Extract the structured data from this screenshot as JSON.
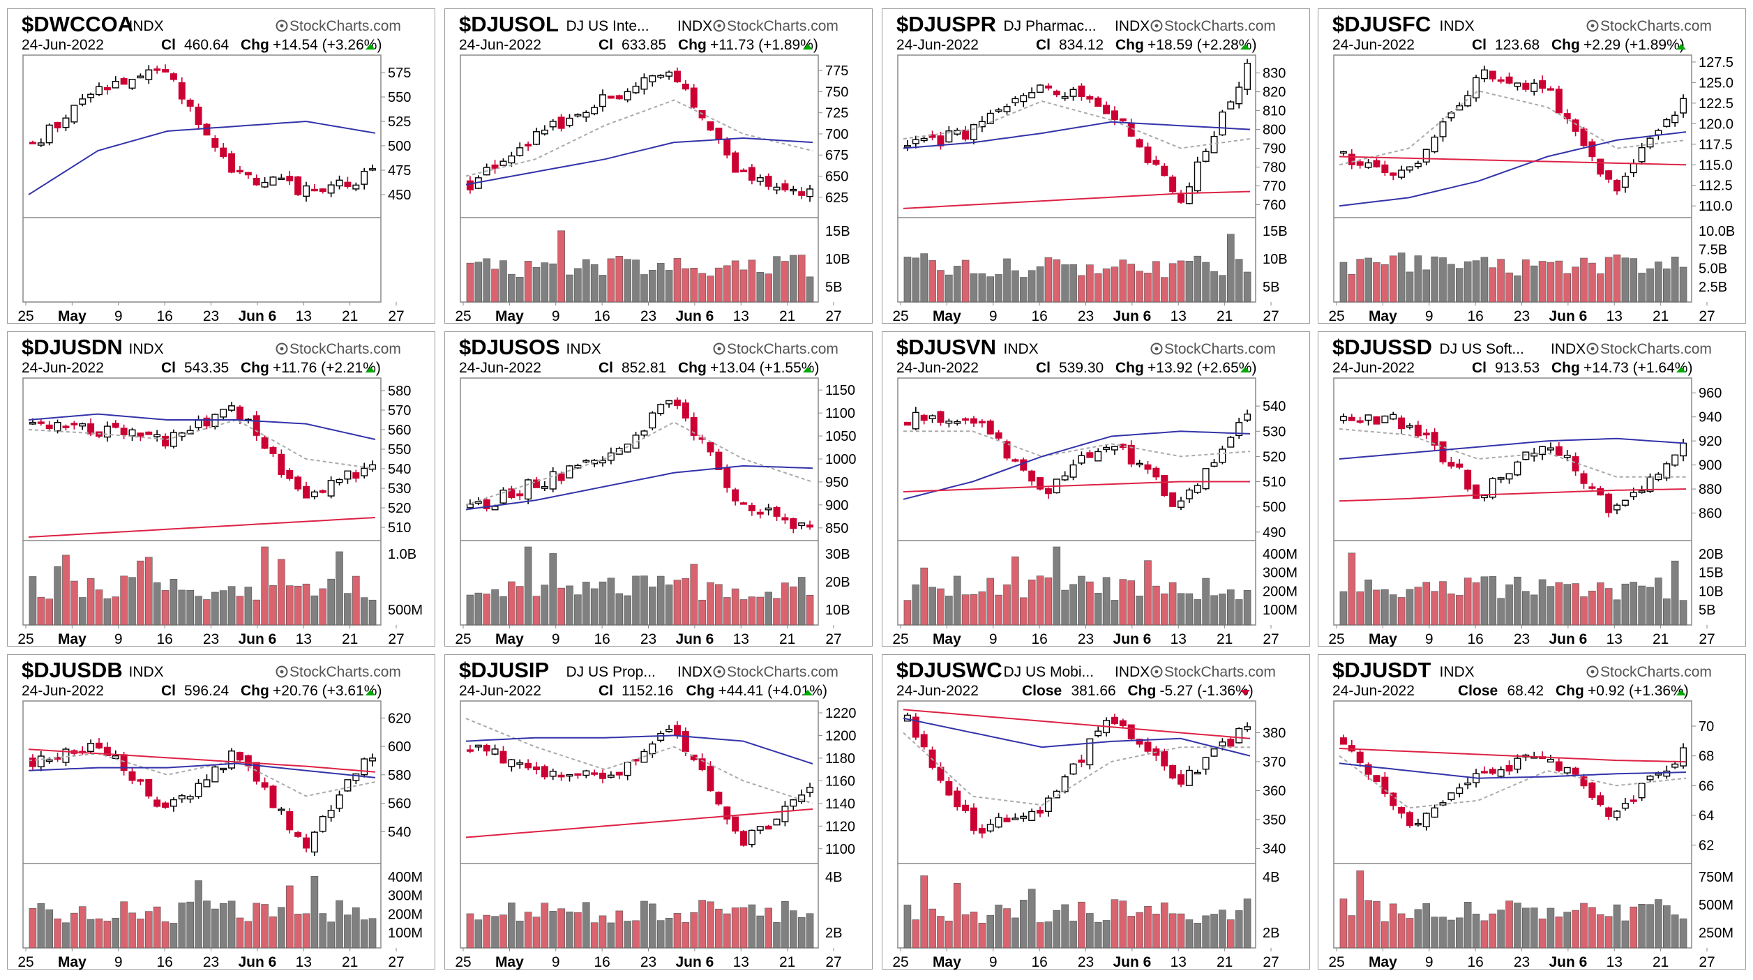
{
  "colors": {
    "up": "#ffffff",
    "down": "#cc0033",
    "upVol": "#808080",
    "downVol": "#d9636f",
    "ma50": "#3333aa",
    "ma200": "#dd2244",
    "ma20": "#aaaaaa",
    "arrowUp": "#00aa00",
    "arrowDown": "#cc0033"
  },
  "chart_data": [
    {
      "type": "candlestick",
      "symbol": "$DWCCOA",
      "name": "",
      "exchange": "INDX",
      "brand": "StockCharts.com",
      "date": "24-Jun-2022",
      "close_label": "Cl",
      "close": "460.64",
      "chg_label": "Chg",
      "chg": "+14.54 (+3.26%)",
      "dir": "up",
      "yticks": [
        "575",
        "550",
        "525",
        "500",
        "475",
        "450"
      ],
      "ylim": [
        430,
        590
      ],
      "vol_ticks": [],
      "xticks": [
        "25",
        "May",
        "9",
        "16",
        "23",
        "Jun 6",
        "13",
        "21",
        "27"
      ],
      "series_seed": 11,
      "trend": [
        500,
        560,
        575,
        470,
        455,
        470
      ],
      "ma50": [
        450,
        495,
        515,
        520,
        525,
        513
      ],
      "ma20": null,
      "ma200": null,
      "hasVol": false
    },
    {
      "type": "candlestick",
      "symbol": "$DJUSOL",
      "name": "DJ US Inte...",
      "exchange": "INDX",
      "brand": "StockCharts.com",
      "date": "24-Jun-2022",
      "close_label": "Cl",
      "close": "633.85",
      "chg_label": "Chg",
      "chg": "+11.73 (+1.89%)",
      "dir": "up",
      "yticks": [
        "775",
        "750",
        "725",
        "700",
        "675",
        "650",
        "625"
      ],
      "ylim": [
        605,
        790
      ],
      "vol_ticks": [
        "15B",
        "10B",
        "5B"
      ],
      "xticks": [
        "25",
        "May",
        "9",
        "16",
        "23",
        "Jun 6",
        "13",
        "21",
        "27"
      ],
      "series_seed": 23,
      "trend": [
        640,
        700,
        740,
        775,
        650,
        630
      ],
      "ma50": [
        640,
        655,
        670,
        690,
        695,
        690
      ],
      "ma20": [
        650,
        670,
        710,
        740,
        700,
        680
      ],
      "ma200": null,
      "hasVol": true
    },
    {
      "type": "candlestick",
      "symbol": "$DJUSPR",
      "name": "DJ Pharmac...",
      "exchange": "INDX",
      "brand": "StockCharts.com",
      "date": "24-Jun-2022",
      "close_label": "Cl",
      "close": "834.12",
      "chg_label": "Chg",
      "chg": "+18.59 (+2.28%)",
      "dir": "up",
      "yticks": [
        "830",
        "820",
        "810",
        "800",
        "790",
        "780",
        "770",
        "760"
      ],
      "ylim": [
        755,
        838
      ],
      "vol_ticks": [
        "15B",
        "10B",
        "5B"
      ],
      "xticks": [
        "25",
        "May",
        "9",
        "16",
        "23",
        "Jun 6",
        "13",
        "21",
        "27"
      ],
      "series_seed": 37,
      "trend": [
        790,
        800,
        825,
        810,
        762,
        832
      ],
      "ma50": [
        790,
        793,
        798,
        804,
        802,
        800
      ],
      "ma20": [
        795,
        800,
        815,
        805,
        790,
        795
      ],
      "ma200": [
        758,
        760,
        762,
        764,
        766,
        767
      ],
      "hasVol": true
    },
    {
      "type": "candlestick",
      "symbol": "$DJUSFC",
      "name": "",
      "exchange": "INDX",
      "brand": "StockCharts.com",
      "date": "24-Jun-2022",
      "close_label": "Cl",
      "close": "123.68",
      "chg_label": "Chg",
      "chg": "+2.29 (+1.89%)",
      "dir": "up",
      "yticks": [
        "127.5",
        "125.0",
        "122.5",
        "120.0",
        "117.5",
        "115.0",
        "112.5",
        "110.0"
      ],
      "ylim": [
        109,
        128
      ],
      "vol_ticks": [
        "10.0B",
        "7.5B",
        "5.0B",
        "2.5B"
      ],
      "xticks": [
        "25",
        "May",
        "9",
        "16",
        "23",
        "Jun 6",
        "13",
        "21",
        "27"
      ],
      "series_seed": 41,
      "trend": [
        116,
        114,
        126,
        124,
        112,
        123
      ],
      "ma50": [
        110,
        111,
        113,
        116,
        118,
        119
      ],
      "ma20": [
        115,
        117,
        124,
        122,
        117,
        118
      ],
      "ma200": [
        116,
        115.8,
        115.6,
        115.4,
        115.2,
        115
      ],
      "hasVol": true
    },
    {
      "type": "candlestick",
      "symbol": "$DJUSDN",
      "name": "",
      "exchange": "INDX",
      "brand": "StockCharts.com",
      "date": "24-Jun-2022",
      "close_label": "Cl",
      "close": "543.35",
      "chg_label": "Chg",
      "chg": "+11.76 (+2.21%)",
      "dir": "up",
      "yticks": [
        "580",
        "570",
        "560",
        "550",
        "540",
        "530",
        "520",
        "510"
      ],
      "ylim": [
        505,
        585
      ],
      "vol_ticks": [
        "1.0B",
        "500M"
      ],
      "xticks": [
        "25",
        "May",
        "9",
        "16",
        "23",
        "Jun 6",
        "13",
        "21",
        "27"
      ],
      "series_seed": 53,
      "trend": [
        565,
        560,
        555,
        570,
        525,
        543
      ],
      "ma50": [
        565,
        568,
        565,
        565,
        563,
        555
      ],
      "ma20": [
        560,
        558,
        555,
        565,
        545,
        540
      ],
      "ma200": [
        505,
        507,
        509,
        511,
        513,
        515
      ],
      "hasVol": true
    },
    {
      "type": "candlestick",
      "symbol": "$DJUSOS",
      "name": "",
      "exchange": "INDX",
      "brand": "StockCharts.com",
      "date": "24-Jun-2022",
      "close_label": "Cl",
      "close": "852.81",
      "chg_label": "Chg",
      "chg": "+13.04 (+1.55%)",
      "dir": "up",
      "yticks": [
        "1150",
        "1100",
        "1050",
        "1000",
        "950",
        "900",
        "850"
      ],
      "ylim": [
        830,
        1170
      ],
      "vol_ticks": [
        "30B",
        "20B",
        "10B"
      ],
      "xticks": [
        "25",
        "May",
        "9",
        "16",
        "23",
        "Jun 6",
        "13",
        "21",
        "27"
      ],
      "series_seed": 67,
      "trend": [
        890,
        950,
        1000,
        1135,
        900,
        852
      ],
      "ma50": [
        890,
        910,
        940,
        970,
        985,
        980
      ],
      "ma20": [
        900,
        950,
        1000,
        1080,
        1000,
        950
      ],
      "ma200": null,
      "hasVol": true
    },
    {
      "type": "candlestick",
      "symbol": "$DJUSVN",
      "name": "",
      "exchange": "INDX",
      "brand": "StockCharts.com",
      "date": "24-Jun-2022",
      "close_label": "Cl",
      "close": "539.30",
      "chg_label": "Chg",
      "chg": "+13.92 (+2.65%)",
      "dir": "up",
      "yticks": [
        "540",
        "530",
        "520",
        "510",
        "500",
        "490"
      ],
      "ylim": [
        488,
        550
      ],
      "vol_ticks": [
        "400M",
        "300M",
        "200M",
        "100M"
      ],
      "xticks": [
        "25",
        "May",
        "9",
        "16",
        "23",
        "Jun 6",
        "13",
        "21",
        "27"
      ],
      "series_seed": 71,
      "trend": [
        535,
        535,
        505,
        528,
        500,
        539
      ],
      "ma50": [
        503,
        510,
        520,
        528,
        530,
        529
      ],
      "ma20": [
        530,
        530,
        520,
        525,
        520,
        522
      ],
      "ma200": [
        506,
        507,
        508,
        509,
        510,
        510
      ],
      "hasVol": true
    },
    {
      "type": "candlestick",
      "symbol": "$DJUSSD",
      "name": "DJ US Soft...",
      "exchange": "INDX",
      "brand": "StockCharts.com",
      "date": "24-Jun-2022",
      "close_label": "Cl",
      "close": "913.53",
      "chg_label": "Chg",
      "chg": "+14.73 (+1.64%)",
      "dir": "up",
      "yticks": [
        "960",
        "940",
        "920",
        "900",
        "880",
        "860"
      ],
      "ylim": [
        840,
        970
      ],
      "vol_ticks": [
        "20B",
        "15B",
        "10B",
        "5B"
      ],
      "xticks": [
        "25",
        "May",
        "9",
        "16",
        "23",
        "Jun 6",
        "13",
        "21",
        "27"
      ],
      "series_seed": 83,
      "trend": [
        940,
        935,
        875,
        920,
        860,
        913
      ],
      "ma50": [
        905,
        910,
        915,
        920,
        922,
        918
      ],
      "ma20": [
        930,
        925,
        905,
        910,
        890,
        890
      ],
      "ma200": [
        870,
        872,
        875,
        877,
        879,
        880
      ],
      "hasVol": true
    },
    {
      "type": "candlestick",
      "symbol": "$DJUSDB",
      "name": "",
      "exchange": "INDX",
      "brand": "StockCharts.com",
      "date": "24-Jun-2022",
      "close_label": "Cl",
      "close": "596.24",
      "chg_label": "Chg",
      "chg": "+20.76 (+3.61%)",
      "dir": "up",
      "yticks": [
        "620",
        "600",
        "580",
        "560",
        "540"
      ],
      "ylim": [
        520,
        630
      ],
      "vol_ticks": [
        "400M",
        "300M",
        "200M",
        "100M"
      ],
      "xticks": [
        "25",
        "May",
        "9",
        "16",
        "23",
        "Jun 6",
        "13",
        "21",
        "27"
      ],
      "series_seed": 97,
      "trend": [
        590,
        600,
        555,
        595,
        530,
        596
      ],
      "ma50": [
        583,
        585,
        585,
        588,
        583,
        578
      ],
      "ma20": [
        590,
        595,
        580,
        590,
        565,
        575
      ],
      "ma200": [
        598,
        595,
        592,
        589,
        586,
        582
      ],
      "hasVol": true
    },
    {
      "type": "candlestick",
      "symbol": "$DJUSIP",
      "name": "DJ US Prop...",
      "exchange": "INDX",
      "brand": "StockCharts.com",
      "date": "24-Jun-2022",
      "close_label": "Cl",
      "close": "1152.16",
      "chg_label": "Chg",
      "chg": "+44.41 (+4.01%)",
      "dir": "up",
      "yticks": [
        "1220",
        "1200",
        "1180",
        "1160",
        "1140",
        "1120",
        "1100"
      ],
      "ylim": [
        1090,
        1228
      ],
      "vol_ticks": [
        "4B",
        "2B"
      ],
      "xticks": [
        "25",
        "May",
        "9",
        "16",
        "23",
        "Jun 6",
        "13",
        "21",
        "27"
      ],
      "series_seed": 101,
      "trend": [
        1190,
        1170,
        1160,
        1210,
        1105,
        1152
      ],
      "ma50": [
        1195,
        1198,
        1198,
        1200,
        1195,
        1175
      ],
      "ma20": [
        1215,
        1190,
        1170,
        1190,
        1160,
        1140
      ],
      "ma200": [
        1110,
        1115,
        1120,
        1125,
        1130,
        1135
      ],
      "hasVol": true
    },
    {
      "type": "candlestick",
      "symbol": "$DJUSWC",
      "name": "DJ US Mobi...",
      "exchange": "INDX",
      "brand": "StockCharts.com",
      "date": "24-Jun-2022",
      "close_label": "Close",
      "close": "381.66",
      "chg_label": "Chg",
      "chg": "-5.27 (-1.36%)",
      "dir": "down",
      "yticks": [
        "380",
        "370",
        "360",
        "350",
        "340"
      ],
      "ylim": [
        336,
        390
      ],
      "vol_ticks": [
        "4B",
        "2B"
      ],
      "xticks": [
        "25",
        "May",
        "9",
        "16",
        "23",
        "Jun 6",
        "13",
        "21",
        "27"
      ],
      "series_seed": 113,
      "trend": [
        385,
        345,
        355,
        385,
        362,
        382
      ],
      "ma50": [
        385,
        380,
        375,
        377,
        378,
        372
      ],
      "ma20": [
        380,
        358,
        355,
        370,
        375,
        375
      ],
      "ma200": [
        388,
        386,
        384,
        382,
        380,
        378
      ],
      "hasVol": true
    },
    {
      "type": "candlestick",
      "symbol": "$DJUSDT",
      "name": "",
      "exchange": "INDX",
      "brand": "StockCharts.com",
      "date": "24-Jun-2022",
      "close_label": "Close",
      "close": "68.42",
      "chg_label": "Chg",
      "chg": "+0.92 (+1.36%)",
      "dir": "up",
      "yticks": [
        "70",
        "68",
        "66",
        "64",
        "62"
      ],
      "ylim": [
        61,
        71.5
      ],
      "vol_ticks": [
        "750M",
        "500M",
        "250M"
      ],
      "xticks": [
        "25",
        "May",
        "9",
        "16",
        "23",
        "Jun 6",
        "13",
        "21",
        "27"
      ],
      "series_seed": 127,
      "trend": [
        69,
        63,
        67,
        68,
        64,
        68.4
      ],
      "ma50": [
        67.5,
        67,
        66.5,
        66.6,
        66.8,
        66.9
      ],
      "ma20": [
        68,
        64.5,
        65,
        67,
        66,
        66.5
      ],
      "ma200": [
        68.5,
        68.3,
        68.1,
        67.9,
        67.7,
        67.6
      ],
      "hasVol": true
    }
  ]
}
